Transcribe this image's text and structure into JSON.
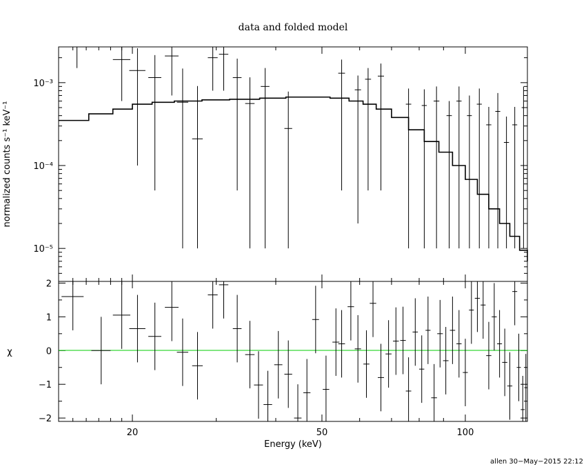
{
  "chart_data": [
    {
      "type": "scatter",
      "title": "data and folded model",
      "xlabel": "",
      "ylabel": "normalized counts s⁻¹ keV⁻¹",
      "x_scale": "log",
      "y_scale": "log",
      "xlim": [
        14,
        135
      ],
      "ylim": [
        4e-06,
        0.0027
      ],
      "y_ticks": [
        {
          "value": 1e-05,
          "label": "10⁻⁵"
        },
        {
          "value": 0.0001,
          "label": "10⁻⁴"
        },
        {
          "value": 0.001,
          "label": "10⁻³"
        }
      ],
      "data": [
        {
          "x": 15.3,
          "y": 0.0027,
          "xerr": 0.7,
          "yerr_lo": 0.0012,
          "yerr_hi": 0.001
        },
        {
          "x": 19.0,
          "y": 0.0019,
          "xerr": 0.8,
          "yerr_lo": 0.0013,
          "yerr_hi": 0.001
        },
        {
          "x": 20.5,
          "y": 0.0014,
          "xerr": 0.8,
          "yerr_lo": 0.0013,
          "yerr_hi": 0.0012
        },
        {
          "x": 22.3,
          "y": 0.00115,
          "xerr": 0.7,
          "yerr_lo": 0.0011,
          "yerr_hi": 0.001
        },
        {
          "x": 24.2,
          "y": 0.0021,
          "xerr": 0.8,
          "yerr_lo": 0.0014,
          "yerr_hi": 0.001
        },
        {
          "x": 25.5,
          "y": 0.00058,
          "xerr": 0.7,
          "yerr_lo": 0.00057,
          "yerr_hi": 0.0009
        },
        {
          "x": 27.4,
          "y": 0.00021,
          "xerr": 0.7,
          "yerr_lo": 0.0002,
          "yerr_hi": 0.0007
        },
        {
          "x": 29.5,
          "y": 0.002,
          "xerr": 0.7,
          "yerr_lo": 0.0012,
          "yerr_hi": 0.001
        },
        {
          "x": 31.1,
          "y": 0.0022,
          "xerr": 0.7,
          "yerr_lo": 0.0014,
          "yerr_hi": 0.001
        },
        {
          "x": 33.2,
          "y": 0.00115,
          "xerr": 0.7,
          "yerr_lo": 0.0011,
          "yerr_hi": 0.0008
        },
        {
          "x": 35.3,
          "y": 0.00056,
          "xerr": 0.8,
          "yerr_lo": 0.00055,
          "yerr_hi": 0.0006
        },
        {
          "x": 38.0,
          "y": 0.0009,
          "xerr": 0.8,
          "yerr_lo": 0.00089,
          "yerr_hi": 0.0006
        },
        {
          "x": 42.5,
          "y": 0.00028,
          "xerr": 0.8,
          "yerr_lo": 0.00027,
          "yerr_hi": 0.0005
        },
        {
          "x": 55.0,
          "y": 0.0013,
          "xerr": 0.9,
          "yerr_lo": 0.00125,
          "yerr_hi": 0.0006
        },
        {
          "x": 59.5,
          "y": 0.00082,
          "xerr": 0.9,
          "yerr_lo": 0.0008,
          "yerr_hi": 0.0004
        },
        {
          "x": 62.5,
          "y": 0.0011,
          "xerr": 0.9,
          "yerr_lo": 0.00105,
          "yerr_hi": 0.0004
        },
        {
          "x": 66.5,
          "y": 0.0012,
          "xerr": 1.0,
          "yerr_lo": 0.00115,
          "yerr_hi": 0.0005
        },
        {
          "x": 76.0,
          "y": 0.00055,
          "xerr": 1.0,
          "yerr_lo": 0.00054,
          "yerr_hi": 0.0003
        },
        {
          "x": 82.0,
          "y": 0.00053,
          "xerr": 1.0,
          "yerr_lo": 0.00052,
          "yerr_hi": 0.0003
        },
        {
          "x": 87.0,
          "y": 0.0006,
          "xerr": 1.2,
          "yerr_lo": 0.00059,
          "yerr_hi": 0.0003
        },
        {
          "x": 92.5,
          "y": 0.0004,
          "xerr": 1.2,
          "yerr_lo": 0.00039,
          "yerr_hi": 0.0002
        },
        {
          "x": 97.0,
          "y": 0.0006,
          "xerr": 1.2,
          "yerr_lo": 0.00059,
          "yerr_hi": 0.0003
        },
        {
          "x": 102.0,
          "y": 0.0004,
          "xerr": 1.2,
          "yerr_lo": 0.00039,
          "yerr_hi": 0.0003
        },
        {
          "x": 107.0,
          "y": 0.00055,
          "xerr": 1.3,
          "yerr_lo": 0.00054,
          "yerr_hi": 0.0003
        },
        {
          "x": 112.0,
          "y": 0.00031,
          "xerr": 1.4,
          "yerr_lo": 0.0003,
          "yerr_hi": 0.0002
        },
        {
          "x": 117.0,
          "y": 0.00045,
          "xerr": 1.4,
          "yerr_lo": 0.00044,
          "yerr_hi": 0.0003
        },
        {
          "x": 122.0,
          "y": 0.00019,
          "xerr": 1.5,
          "yerr_lo": 0.00018,
          "yerr_hi": 0.0002
        },
        {
          "x": 127.0,
          "y": 0.00031,
          "xerr": 1.5,
          "yerr_lo": 0.0003,
          "yerr_hi": 0.0002
        },
        {
          "x": 132.5,
          "y": 0.0005,
          "xerr": 1.2,
          "yerr_lo": 0.00049,
          "yerr_hi": 0.0004
        }
      ],
      "model": [
        {
          "x": 14.0,
          "y": 0.00035
        },
        {
          "x": 16.2,
          "y": 0.00042
        },
        {
          "x": 18.2,
          "y": 0.00048
        },
        {
          "x": 20.0,
          "y": 0.00055
        },
        {
          "x": 22.0,
          "y": 0.00058
        },
        {
          "x": 24.5,
          "y": 0.0006
        },
        {
          "x": 28.0,
          "y": 0.00062
        },
        {
          "x": 32.0,
          "y": 0.00063
        },
        {
          "x": 37.0,
          "y": 0.00065
        },
        {
          "x": 42.0,
          "y": 0.00067
        },
        {
          "x": 47.0,
          "y": 0.00067
        },
        {
          "x": 52.0,
          "y": 0.00065
        },
        {
          "x": 57.0,
          "y": 0.0006
        },
        {
          "x": 61.0,
          "y": 0.00055
        },
        {
          "x": 65.0,
          "y": 0.00048
        },
        {
          "x": 70.0,
          "y": 0.00038
        },
        {
          "x": 76.0,
          "y": 0.00027
        },
        {
          "x": 82.0,
          "y": 0.000195
        },
        {
          "x": 88.0,
          "y": 0.000145
        },
        {
          "x": 94.0,
          "y": 0.0001
        },
        {
          "x": 100.0,
          "y": 6.8e-05
        },
        {
          "x": 106.0,
          "y": 4.5e-05
        },
        {
          "x": 112.0,
          "y": 3e-05
        },
        {
          "x": 118.0,
          "y": 2e-05
        },
        {
          "x": 124.0,
          "y": 1.4e-05
        },
        {
          "x": 130.0,
          "y": 9.5e-06
        },
        {
          "x": 135.0,
          "y": 7e-06
        }
      ]
    },
    {
      "type": "scatter",
      "title": "",
      "xlabel": "Energy (keV)",
      "ylabel": "χ",
      "x_scale": "log",
      "y_scale": "linear",
      "xlim": [
        14,
        135
      ],
      "ylim": [
        -2.1,
        2.05
      ],
      "x_ticks": [
        {
          "value": 20,
          "label": "20"
        },
        {
          "value": 50,
          "label": "50"
        },
        {
          "value": 100,
          "label": "100"
        }
      ],
      "y_ticks": [
        {
          "value": -2,
          "label": "−2"
        },
        {
          "value": -1,
          "label": "−1"
        },
        {
          "value": 0,
          "label": "0"
        },
        {
          "value": 1,
          "label": "1"
        },
        {
          "value": 2,
          "label": "2"
        }
      ],
      "reference_line": {
        "y": 0,
        "color": "#00cc00"
      },
      "data": [
        {
          "x": 15.0,
          "y": 1.6,
          "xerr": 0.8,
          "yerr": 1.0
        },
        {
          "x": 17.2,
          "y": 0.0,
          "xerr": 0.8,
          "yerr": 1.0
        },
        {
          "x": 19.0,
          "y": 1.05,
          "xerr": 0.8,
          "yerr": 1.0
        },
        {
          "x": 20.5,
          "y": 0.65,
          "xerr": 0.8,
          "yerr": 1.0
        },
        {
          "x": 22.3,
          "y": 0.42,
          "xerr": 0.7,
          "yerr": 1.0
        },
        {
          "x": 24.2,
          "y": 1.28,
          "xerr": 0.8,
          "yerr": 1.0
        },
        {
          "x": 25.5,
          "y": -0.05,
          "xerr": 0.7,
          "yerr": 1.0
        },
        {
          "x": 27.4,
          "y": -0.45,
          "xerr": 0.7,
          "yerr": 1.0
        },
        {
          "x": 29.5,
          "y": 1.65,
          "xerr": 0.7,
          "yerr": 1.0
        },
        {
          "x": 31.1,
          "y": 1.95,
          "xerr": 0.7,
          "yerr": 1.0
        },
        {
          "x": 33.2,
          "y": 0.65,
          "xerr": 0.7,
          "yerr": 1.0
        },
        {
          "x": 35.3,
          "y": -0.12,
          "xerr": 0.8,
          "yerr": 1.0
        },
        {
          "x": 36.8,
          "y": -1.02,
          "xerr": 0.8,
          "yerr": 1.0
        },
        {
          "x": 38.5,
          "y": -1.6,
          "xerr": 0.8,
          "yerr": 1.0
        },
        {
          "x": 40.5,
          "y": -0.42,
          "xerr": 0.8,
          "yerr": 1.0
        },
        {
          "x": 42.5,
          "y": -0.7,
          "xerr": 0.8,
          "yerr": 1.0
        },
        {
          "x": 44.5,
          "y": -2.0,
          "xerr": 0.8,
          "yerr": 1.0
        },
        {
          "x": 46.5,
          "y": -1.25,
          "xerr": 0.8,
          "yerr": 1.0
        },
        {
          "x": 48.5,
          "y": 0.92,
          "xerr": 0.8,
          "yerr": 1.0
        },
        {
          "x": 51.0,
          "y": -1.15,
          "xerr": 0.8,
          "yerr": 1.0
        },
        {
          "x": 53.5,
          "y": 0.25,
          "xerr": 0.9,
          "yerr": 1.0
        },
        {
          "x": 55.0,
          "y": 0.2,
          "xerr": 0.9,
          "yerr": 1.0
        },
        {
          "x": 57.5,
          "y": 1.3,
          "xerr": 0.9,
          "yerr": 1.0
        },
        {
          "x": 59.5,
          "y": 0.05,
          "xerr": 0.9,
          "yerr": 1.0
        },
        {
          "x": 62.0,
          "y": -0.4,
          "xerr": 0.9,
          "yerr": 1.0
        },
        {
          "x": 64.0,
          "y": 1.4,
          "xerr": 1.0,
          "yerr": 1.0
        },
        {
          "x": 66.5,
          "y": -0.8,
          "xerr": 1.0,
          "yerr": 1.0
        },
        {
          "x": 69.0,
          "y": -0.1,
          "xerr": 1.0,
          "yerr": 1.0
        },
        {
          "x": 71.5,
          "y": 0.28,
          "xerr": 1.0,
          "yerr": 1.0
        },
        {
          "x": 74.0,
          "y": 0.3,
          "xerr": 1.0,
          "yerr": 1.0
        },
        {
          "x": 76.0,
          "y": -1.2,
          "xerr": 1.0,
          "yerr": 1.0
        },
        {
          "x": 78.5,
          "y": 0.55,
          "xerr": 1.0,
          "yerr": 1.0
        },
        {
          "x": 81.0,
          "y": -0.55,
          "xerr": 1.0,
          "yerr": 1.0
        },
        {
          "x": 83.5,
          "y": 0.6,
          "xerr": 1.0,
          "yerr": 1.0
        },
        {
          "x": 86.0,
          "y": -1.4,
          "xerr": 1.2,
          "yerr": 1.0
        },
        {
          "x": 88.5,
          "y": 0.5,
          "xerr": 1.2,
          "yerr": 1.0
        },
        {
          "x": 91.0,
          "y": -0.3,
          "xerr": 1.2,
          "yerr": 1.0
        },
        {
          "x": 94.0,
          "y": 0.6,
          "xerr": 1.2,
          "yerr": 1.0
        },
        {
          "x": 97.0,
          "y": 0.2,
          "xerr": 1.2,
          "yerr": 1.0
        },
        {
          "x": 100.0,
          "y": -0.65,
          "xerr": 1.2,
          "yerr": 1.0
        },
        {
          "x": 103.0,
          "y": 1.2,
          "xerr": 1.2,
          "yerr": 1.0
        },
        {
          "x": 106.0,
          "y": 1.55,
          "xerr": 1.3,
          "yerr": 1.0
        },
        {
          "x": 109.0,
          "y": 1.35,
          "xerr": 1.3,
          "yerr": 1.0
        },
        {
          "x": 112.0,
          "y": -0.15,
          "xerr": 1.4,
          "yerr": 1.0
        },
        {
          "x": 115.0,
          "y": 1.0,
          "xerr": 1.4,
          "yerr": 1.0
        },
        {
          "x": 118.0,
          "y": 0.2,
          "xerr": 1.4,
          "yerr": 1.0
        },
        {
          "x": 121.0,
          "y": -0.35,
          "xerr": 1.5,
          "yerr": 1.0
        },
        {
          "x": 124.0,
          "y": -1.05,
          "xerr": 1.5,
          "yerr": 1.0
        },
        {
          "x": 127.0,
          "y": 1.75,
          "xerr": 1.5,
          "yerr": 1.0
        },
        {
          "x": 129.5,
          "y": -0.5,
          "xerr": 1.3,
          "yerr": 1.0
        },
        {
          "x": 132.0,
          "y": -1.75,
          "xerr": 1.3,
          "yerr": 1.0
        },
        {
          "x": 134.0,
          "y": -1.1,
          "xerr": 1.0,
          "yerr": 1.0
        }
      ]
    }
  ],
  "footer": "allen 30−May−2015 22:12"
}
